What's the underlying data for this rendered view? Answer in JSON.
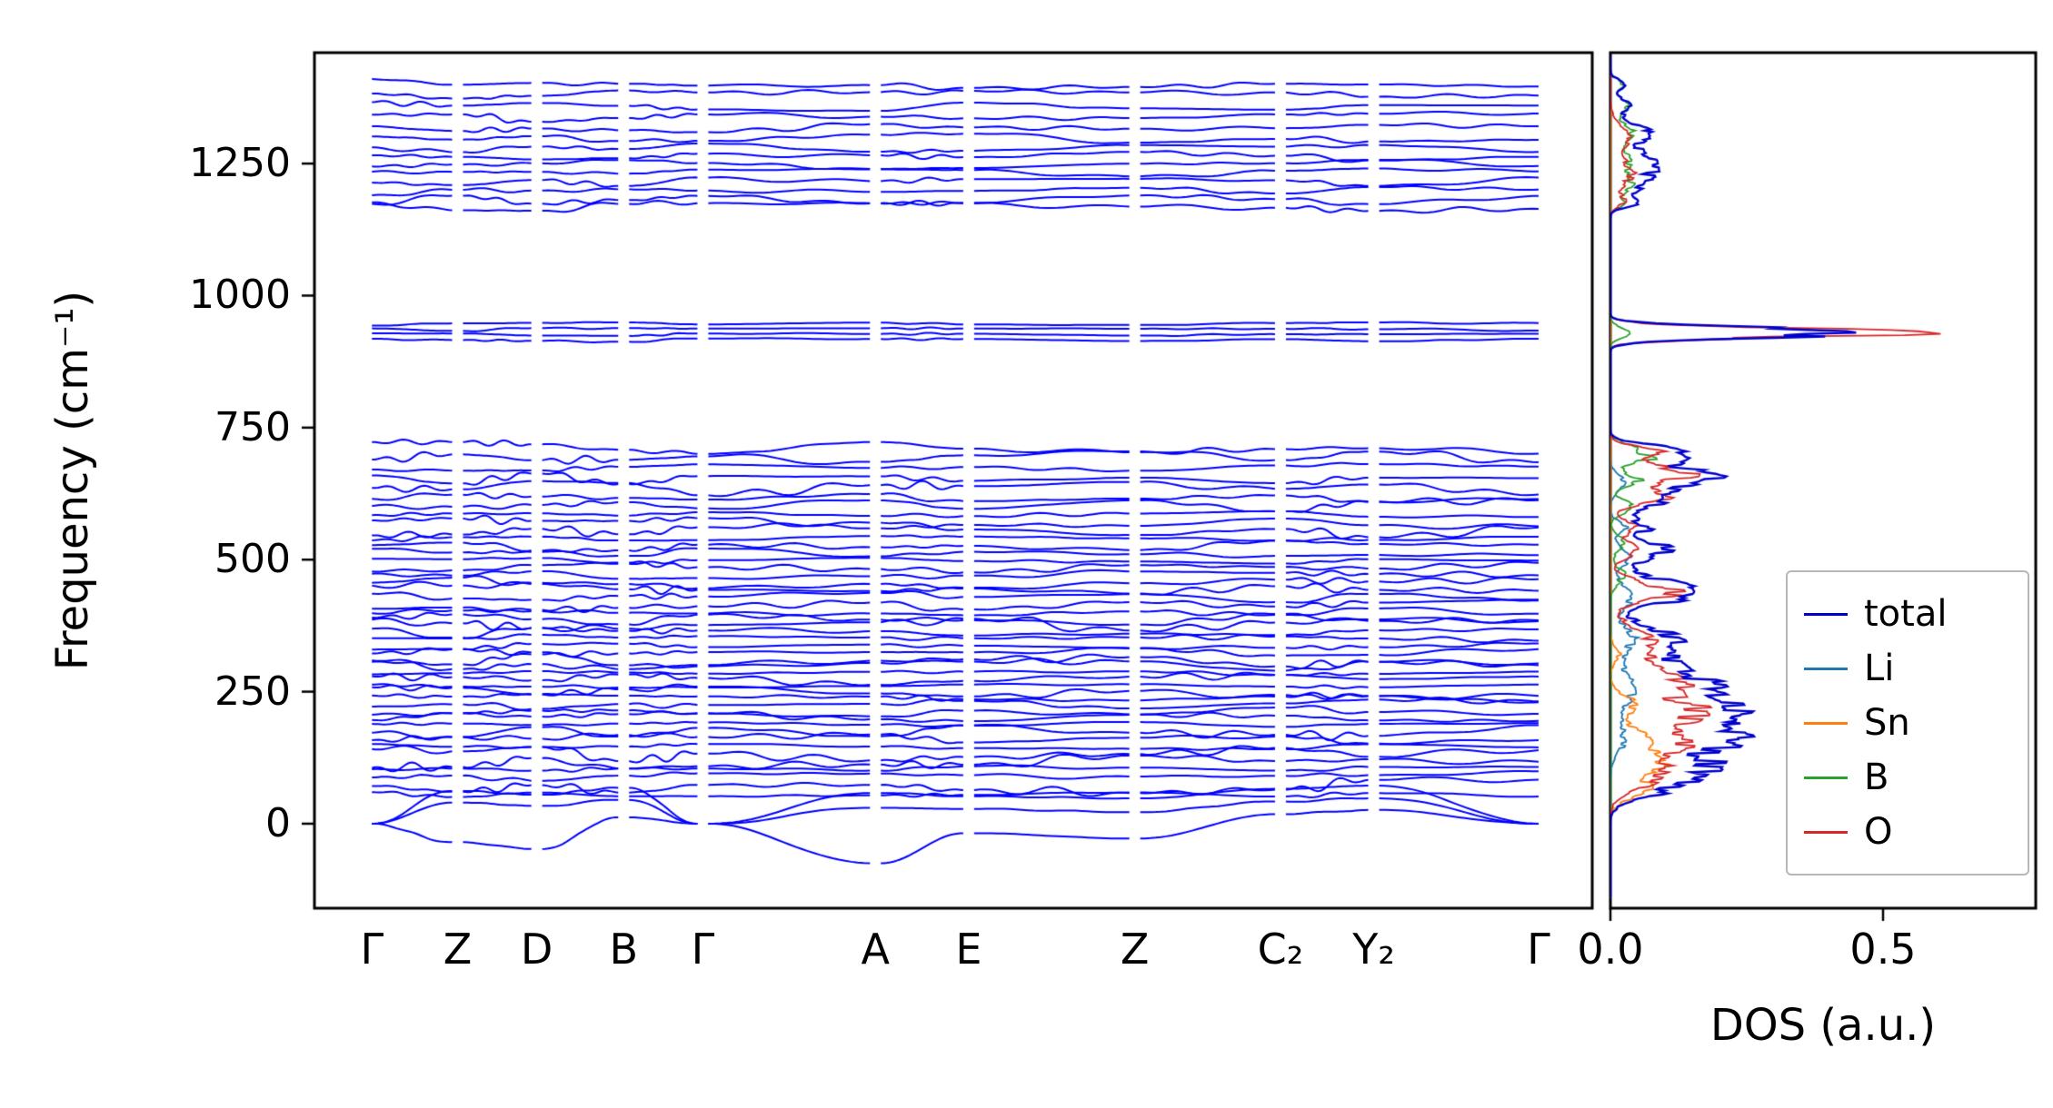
{
  "figure": {
    "background": "#ffffff",
    "axis_color": "#000000"
  },
  "chart_data": {
    "type": "line",
    "description": "Phonon band structure (left panel) with atom-projected phonon density of states (right panel)",
    "panels": [
      {
        "id": "bands",
        "ylabel": "Frequency (cm⁻¹)",
        "ylim": [
          -160,
          1460
        ],
        "yticks": [
          0,
          250,
          500,
          750,
          1000,
          1250
        ],
        "ytick_labels": [
          "0",
          "250",
          "500",
          "750",
          "1000",
          "1250"
        ],
        "kpath_labels": [
          "Γ",
          "Z",
          "D",
          "B",
          "Γ",
          "A",
          "E",
          "Z",
          "C₂",
          "Y₂",
          "Γ"
        ],
        "kpath_positions": [
          0.045,
          0.112,
          0.174,
          0.242,
          0.304,
          0.439,
          0.512,
          0.642,
          0.756,
          0.829,
          0.958
        ],
        "band_color": "#0000ff",
        "acoustic_band_nodes": [
          [
            0,
            62,
            55,
            68,
            0,
            58,
            52,
            48,
            66,
            72,
            0
          ],
          [
            0,
            40,
            34,
            45,
            0,
            30,
            28,
            22,
            42,
            48,
            0
          ],
          [
            0,
            -35,
            -48,
            12,
            0,
            -75,
            -18,
            -28,
            18,
            26,
            0
          ]
        ],
        "optical_band_frequencies": [
          55,
          72,
          90,
          105,
          118,
          132,
          146,
          160,
          174,
          188,
          202,
          214,
          226,
          238,
          250,
          262,
          274,
          287,
          299,
          311,
          324,
          337,
          350,
          362,
          375,
          388,
          401,
          415,
          429,
          443,
          457,
          471,
          485,
          499,
          513,
          527,
          541,
          556,
          571,
          586,
          602,
          618,
          636,
          655,
          675,
          695,
          712,
          916,
          926,
          936,
          946,
          1168,
          1182,
          1198,
          1215,
          1232,
          1248,
          1264,
          1280,
          1298,
          1316,
          1336,
          1358,
          1380,
          1402
        ],
        "band_gaps_cm1": [
          [
            720,
            912
          ],
          [
            952,
            1164
          ]
        ]
      },
      {
        "id": "dos",
        "xlabel": "DOS (a.u.)",
        "xlim": [
          0,
          0.78
        ],
        "xticks": [
          0.0,
          0.5
        ],
        "xtick_labels": [
          "0.0",
          "0.5"
        ],
        "legend_order": [
          "total",
          "Li",
          "Sn",
          "B",
          "O"
        ],
        "peak_format": "[center_cm1, height_au, sigma_cm1]",
        "series": [
          {
            "name": "total",
            "color": "#0000cd",
            "line_width": 2.4,
            "sum_of": [
              "Li",
              "Sn",
              "B",
              "O"
            ]
          },
          {
            "name": "Li",
            "color": "#1f77b4",
            "line_width": 1.8,
            "peaks": [
              [
                160,
                0.03,
                25
              ],
              [
                250,
                0.05,
                32
              ],
              [
                345,
                0.05,
                28
              ],
              [
                430,
                0.05,
                22
              ],
              [
                505,
                0.04,
                18
              ],
              [
                560,
                0.03,
                12
              ],
              [
                645,
                0.03,
                15
              ]
            ]
          },
          {
            "name": "Sn",
            "color": "#ff7f0e",
            "line_width": 1.8,
            "peaks": [
              [
                65,
                0.07,
                18
              ],
              [
                110,
                0.1,
                22
              ],
              [
                165,
                0.08,
                22
              ],
              [
                225,
                0.05,
                18
              ],
              [
                320,
                0.02,
                14
              ]
            ]
          },
          {
            "name": "B",
            "color": "#2ca02c",
            "line_width": 1.8,
            "peaks": [
              [
                470,
                0.03,
                16
              ],
              [
                530,
                0.03,
                14
              ],
              [
                600,
                0.05,
                12
              ],
              [
                650,
                0.06,
                12
              ],
              [
                690,
                0.08,
                10
              ],
              [
                714,
                0.05,
                9
              ],
              [
                930,
                0.05,
                9
              ],
              [
                1175,
                0.03,
                8
              ],
              [
                1212,
                0.05,
                16
              ],
              [
                1258,
                0.05,
                16
              ],
              [
                1308,
                0.05,
                16
              ],
              [
                1360,
                0.04,
                13
              ],
              [
                1400,
                0.03,
                9
              ]
            ]
          },
          {
            "name": "O",
            "color": "#d62728",
            "line_width": 1.8,
            "peaks": [
              [
                85,
                0.09,
                22
              ],
              [
                140,
                0.13,
                28
              ],
              [
                210,
                0.17,
                32
              ],
              [
                280,
                0.13,
                28
              ],
              [
                350,
                0.09,
                22
              ],
              [
                440,
                0.13,
                18
              ],
              [
                520,
                0.06,
                16
              ],
              [
                565,
                0.05,
                12
              ],
              [
                620,
                0.11,
                15
              ],
              [
                662,
                0.16,
                14
              ],
              [
                700,
                0.11,
                12
              ],
              [
                930,
                0.62,
                9
              ],
              [
                1180,
                0.03,
                10
              ],
              [
                1230,
                0.05,
                22
              ],
              [
                1300,
                0.04,
                22
              ]
            ]
          }
        ]
      }
    ]
  }
}
